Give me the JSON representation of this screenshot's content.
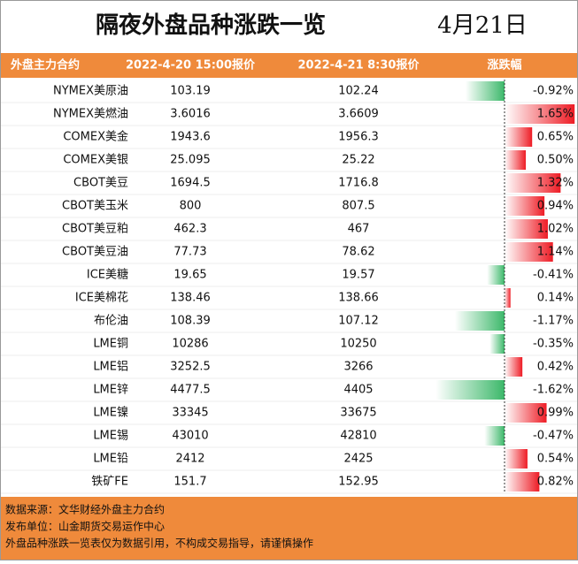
{
  "header": {
    "title": "隔夜外盘品种涨跌一览",
    "date": "4月21日"
  },
  "table": {
    "columns": [
      "外盘主力合约",
      "2022-4-20 15:00报价",
      "2022-4-21 8:30报价",
      "涨跌幅"
    ],
    "rows": [
      [
        "NYMEX美原油",
        "103.19",
        "102.24",
        {
          "value": -0.92,
          "label": "-0.92%"
        }
      ],
      [
        "NYMEX美燃油",
        "3.6016",
        "3.6609",
        {
          "value": 1.65,
          "label": "1.65%"
        }
      ],
      [
        "COMEX美金",
        "1943.6",
        "1956.3",
        {
          "value": 0.65,
          "label": "0.65%"
        }
      ],
      [
        "COMEX美银",
        "25.095",
        "25.22",
        {
          "value": 0.5,
          "label": "0.50%"
        }
      ],
      [
        "CBOT美豆",
        "1694.5",
        "1716.8",
        {
          "value": 1.32,
          "label": "1.32%"
        }
      ],
      [
        "CBOT美玉米",
        "800",
        "807.5",
        {
          "value": 0.94,
          "label": "0.94%"
        }
      ],
      [
        "CBOT美豆粕",
        "462.3",
        "467",
        {
          "value": 1.02,
          "label": "1.02%"
        }
      ],
      [
        "CBOT美豆油",
        "77.73",
        "78.62",
        {
          "value": 1.14,
          "label": "1.14%"
        }
      ],
      [
        "ICE美糖",
        "19.65",
        "19.57",
        {
          "value": -0.41,
          "label": "-0.41%"
        }
      ],
      [
        "ICE美棉花",
        "138.46",
        "138.66",
        {
          "value": 0.14,
          "label": "0.14%"
        }
      ],
      [
        "布伦油",
        "108.39",
        "107.12",
        {
          "value": -1.17,
          "label": "-1.17%"
        }
      ],
      [
        "LME铜",
        "10286",
        "10250",
        {
          "value": -0.35,
          "label": "-0.35%"
        }
      ],
      [
        "LME铝",
        "3252.5",
        "3266",
        {
          "value": 0.42,
          "label": "0.42%"
        }
      ],
      [
        "LME锌",
        "4477.5",
        "4405",
        {
          "value": -1.62,
          "label": "-1.62%"
        }
      ],
      [
        "LME镍",
        "33345",
        "33675",
        {
          "value": 0.99,
          "label": "0.99%"
        }
      ],
      [
        "LME锡",
        "43010",
        "42810",
        {
          "value": -0.47,
          "label": "-0.47%"
        }
      ],
      [
        "LME铅",
        "2412",
        "2425",
        {
          "value": 0.54,
          "label": "0.54%"
        }
      ],
      [
        "铁矿FE",
        "151.7",
        "152.95",
        {
          "value": 0.82,
          "label": "0.82%"
        }
      ]
    ]
  },
  "footer": [
    "数据来源：文华财经外盘主力合约",
    "发布单位：山金期货交易运作中心",
    "外盘品种涨跌一览表仅为数据引用，不构成交易指导，请谨慎操作"
  ]
}
